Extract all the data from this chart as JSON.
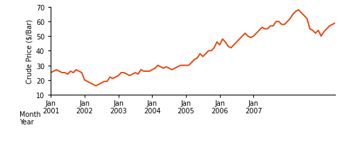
{
  "title": "",
  "ylabel": "Crude Price ($/Bar)",
  "xlabel_row1": "Month",
  "xlabel_row2": "Year",
  "line_color": "#E8440A",
  "line_width": 1.4,
  "ylim": [
    10,
    70
  ],
  "yticks": [
    10,
    20,
    30,
    40,
    50,
    60,
    70
  ],
  "xtick_positions": [
    0,
    12,
    24,
    36,
    48,
    60,
    72
  ],
  "xtick_labels": [
    "Jan\n2001",
    "Jan\n2002",
    "Jan\n2003",
    "Jan\n2004",
    "Jan\n2005",
    "Jan\n2006",
    "Jan\n2007"
  ],
  "prices": [
    25,
    26,
    27,
    26,
    25,
    25,
    24,
    26,
    25,
    27,
    26,
    25,
    20,
    19,
    18,
    17,
    16,
    17,
    18,
    19,
    19,
    22,
    21,
    22,
    23,
    25,
    25,
    24,
    23,
    24,
    25,
    24,
    27,
    26,
    26,
    26,
    27,
    28,
    30,
    29,
    28,
    29,
    28,
    27,
    28,
    29,
    30,
    30,
    30,
    30,
    32,
    34,
    35,
    38,
    36,
    38,
    40,
    40,
    42,
    46,
    44,
    48,
    46,
    43,
    42,
    44,
    46,
    48,
    50,
    52,
    50,
    49,
    50,
    52,
    54,
    56,
    55,
    55,
    57,
    57,
    60,
    60,
    58,
    58,
    60,
    62,
    65,
    67,
    68,
    66,
    64,
    62,
    55,
    54,
    52,
    54,
    50,
    53,
    55,
    57,
    58,
    59
  ]
}
